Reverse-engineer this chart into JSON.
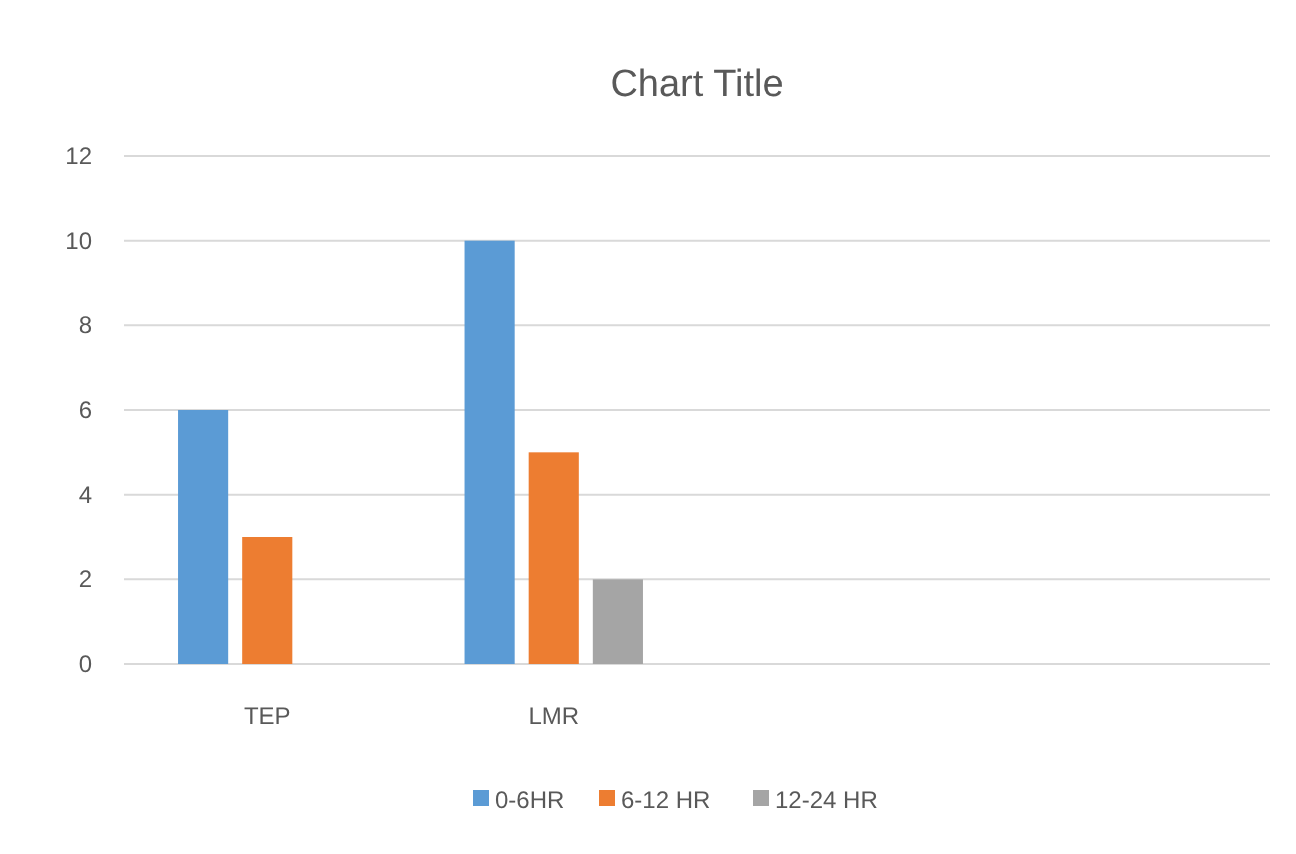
{
  "chart_data": {
    "type": "bar",
    "title": "Chart Title",
    "categories": [
      "TEP",
      "LMR",
      null,
      null
    ],
    "series": [
      {
        "name": "0-6HR",
        "color": "#5b9bd5",
        "values": [
          6,
          10,
          null,
          null
        ]
      },
      {
        "name": "6-12 HR",
        "color": "#ed7d31",
        "values": [
          3,
          5,
          null,
          null
        ]
      },
      {
        "name": "12-24 HR",
        "color": "#a5a5a5",
        "values": [
          null,
          2,
          null,
          null
        ]
      }
    ],
    "ylim": [
      0,
      12
    ],
    "yticks": [
      0,
      2,
      4,
      6,
      8,
      10,
      12
    ],
    "grid": "y",
    "legend": "bottom"
  }
}
